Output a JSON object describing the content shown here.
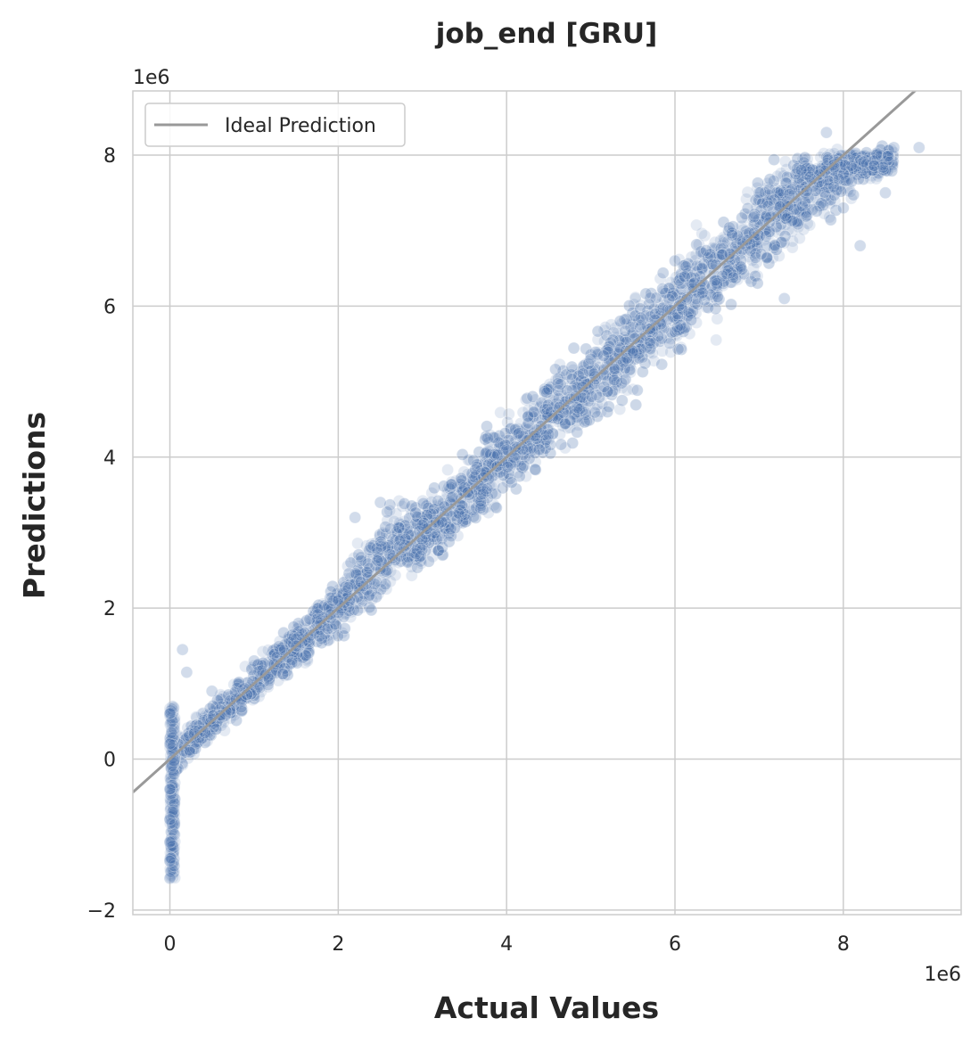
{
  "chart_data": {
    "type": "scatter",
    "title": "job_end [GRU]",
    "xlabel": "Actual Values",
    "ylabel": "Predictions",
    "x_offset_label": "1e6",
    "y_offset_label": "1e6",
    "xlim": [
      -0.44,
      9.4
    ],
    "ylim": [
      -2.06,
      8.85
    ],
    "x_ticks": [
      0,
      2,
      4,
      6,
      8
    ],
    "y_ticks": [
      -2,
      0,
      2,
      4,
      6,
      8
    ],
    "x_tick_labels": [
      "0",
      "2",
      "4",
      "6",
      "8"
    ],
    "y_tick_labels": [
      "−2",
      "0",
      "2",
      "4",
      "6",
      "8"
    ],
    "grid": true,
    "legend": {
      "position": "upper-left",
      "entries": [
        "Ideal Prediction"
      ]
    },
    "series": [
      {
        "kind": "scatter",
        "color": "#4c72b0",
        "alpha": 0.15,
        "description_points": [
          {
            "x": 0.0,
            "y": 0.2
          },
          {
            "x": 0.0,
            "y": 0.6
          },
          {
            "x": 0.0,
            "y": -0.4
          },
          {
            "x": 0.0,
            "y": -0.8
          },
          {
            "x": 0.0,
            "y": -1.1
          },
          {
            "x": 0.0,
            "y": -1.35
          },
          {
            "x": 0.0,
            "y": -1.58
          },
          {
            "x": 0.02,
            "y": 0.35
          },
          {
            "x": 0.05,
            "y": -0.2
          },
          {
            "x": 0.15,
            "y": 1.45
          },
          {
            "x": 0.2,
            "y": 1.15
          },
          {
            "x": 0.5,
            "y": 0.9
          },
          {
            "x": 1.0,
            "y": 1.3
          },
          {
            "x": 1.5,
            "y": 1.5
          },
          {
            "x": 2.0,
            "y": 2.1
          },
          {
            "x": 2.2,
            "y": 3.2
          },
          {
            "x": 2.5,
            "y": 3.4
          },
          {
            "x": 3.0,
            "y": 3.1
          },
          {
            "x": 3.5,
            "y": 3.6
          },
          {
            "x": 4.0,
            "y": 4.1
          },
          {
            "x": 4.5,
            "y": 4.3
          },
          {
            "x": 5.0,
            "y": 5.3
          },
          {
            "x": 5.5,
            "y": 5.4
          },
          {
            "x": 6.0,
            "y": 6.6
          },
          {
            "x": 6.5,
            "y": 6.3
          },
          {
            "x": 7.0,
            "y": 7.5
          },
          {
            "x": 7.3,
            "y": 6.1
          },
          {
            "x": 7.5,
            "y": 7.8
          },
          {
            "x": 7.8,
            "y": 8.3
          },
          {
            "x": 8.0,
            "y": 7.3
          },
          {
            "x": 8.2,
            "y": 6.8
          },
          {
            "x": 8.5,
            "y": 7.5
          },
          {
            "x": 8.6,
            "y": 8.1
          },
          {
            "x": 8.9,
            "y": 8.1
          }
        ]
      },
      {
        "name": "Ideal Prediction",
        "kind": "line",
        "color": "#999999",
        "x": [
          -0.44,
          9.4
        ],
        "y": [
          -0.44,
          9.4
        ]
      }
    ]
  }
}
